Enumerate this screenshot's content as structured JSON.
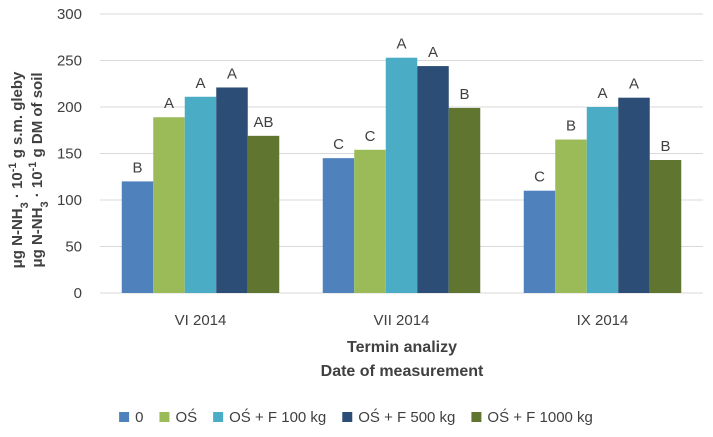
{
  "chart_data": {
    "type": "bar",
    "title": "",
    "xlabel": [
      "Termin analizy",
      "Date of measurement"
    ],
    "ylabel": [
      "μg N-NH",
      "3",
      " · 10",
      "-1",
      " g s.m. gleby",
      "μg N-NH",
      "3",
      " · 10",
      "-1",
      " g DM of soil"
    ],
    "ylabel_line1": {
      "a": "μg N-NH",
      "sub": "3",
      "b": " · 10",
      "sup": "-1",
      "c": " g s.m. gleby"
    },
    "ylabel_line2": {
      "a": "μg N-NH",
      "sub": "3",
      "b": " · 10",
      "sup": "-1",
      "c": " g DM of soil"
    },
    "ylim": [
      0,
      300
    ],
    "yticks": [
      0,
      50,
      100,
      150,
      200,
      250,
      300
    ],
    "grid": true,
    "legend_position": "bottom",
    "categories": [
      "VI 2014",
      "VII 2014",
      "IX 2014"
    ],
    "series": [
      {
        "name": "0",
        "color": "#4f81bd",
        "values": [
          120,
          145,
          110
        ],
        "labels": [
          "B",
          "C",
          "C"
        ]
      },
      {
        "name": "OŚ",
        "color": "#9bbb59",
        "values": [
          189,
          154,
          165
        ],
        "labels": [
          "A",
          "C",
          "B"
        ]
      },
      {
        "name": "OŚ + F 100 kg",
        "color": "#4bacc6",
        "values": [
          211,
          253,
          200
        ],
        "labels": [
          "A",
          "A",
          "A"
        ]
      },
      {
        "name": "OŚ + F 500 kg",
        "color": "#2c4d75",
        "values": [
          221,
          244,
          210
        ],
        "labels": [
          "A",
          "A",
          "A"
        ]
      },
      {
        "name": "OŚ + F 1000 kg",
        "color": "#5f7530",
        "values": [
          169,
          199,
          143
        ],
        "labels": [
          "AB",
          "B",
          "B"
        ]
      }
    ]
  }
}
